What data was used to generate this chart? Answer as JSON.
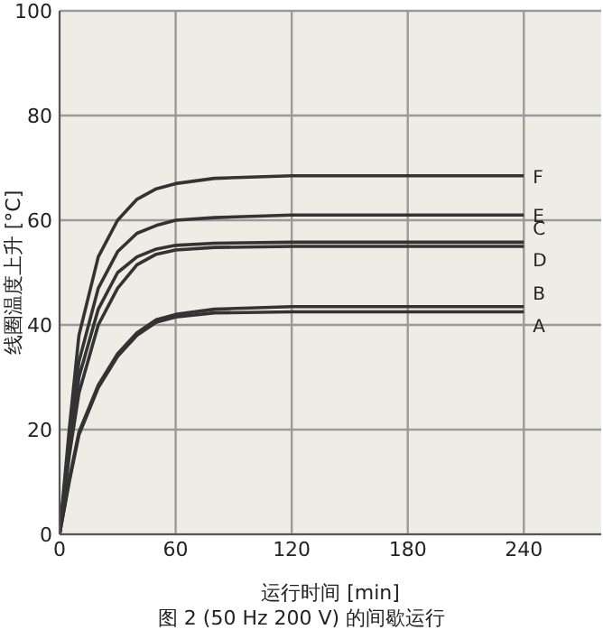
{
  "chart_data": {
    "type": "line",
    "xlabel": "运行时间 [min]",
    "ylabel": "线圈温度上升 [°C]",
    "annotations": [
      "图 2 (50 Hz 200 V) 的间歇运行"
    ],
    "xlim": [
      0,
      280
    ],
    "xticks": [
      0,
      60,
      120,
      180,
      240
    ],
    "ylim": [
      0,
      100
    ],
    "yticks": [
      0,
      20,
      40,
      60,
      80,
      100
    ],
    "grid": true,
    "legend": false,
    "marker": "none",
    "line_style": "solid",
    "x": [
      0,
      5,
      10,
      20,
      30,
      40,
      50,
      60,
      80,
      120,
      240
    ],
    "series": [
      {
        "name": "A",
        "color": "#333333",
        "values": [
          0,
          10,
          19,
          28,
          34,
          38,
          40.5,
          41.5,
          42.3,
          42.5,
          42.5
        ]
      },
      {
        "name": "B",
        "color": "#333333",
        "values": [
          0,
          10.5,
          19.5,
          28.5,
          34.5,
          38.5,
          41,
          42,
          43,
          43.5,
          43.5
        ]
      },
      {
        "name": "C",
        "color": "#333333",
        "values": [
          0,
          16,
          30,
          43,
          50,
          53,
          54.5,
          55.2,
          55.6,
          55.8,
          55.8
        ]
      },
      {
        "name": "D",
        "color": "#333333",
        "values": [
          0,
          15,
          27,
          40,
          47,
          51.5,
          53.5,
          54.3,
          54.8,
          55,
          55
        ]
      },
      {
        "name": "E",
        "color": "#333333",
        "values": [
          0,
          18,
          33,
          47,
          54,
          57.5,
          59,
          60,
          60.5,
          61,
          61
        ]
      },
      {
        "name": "F",
        "color": "#333333",
        "values": [
          0,
          20,
          38,
          53,
          60,
          64,
          66,
          67,
          68,
          68.5,
          68.5
        ]
      }
    ]
  }
}
